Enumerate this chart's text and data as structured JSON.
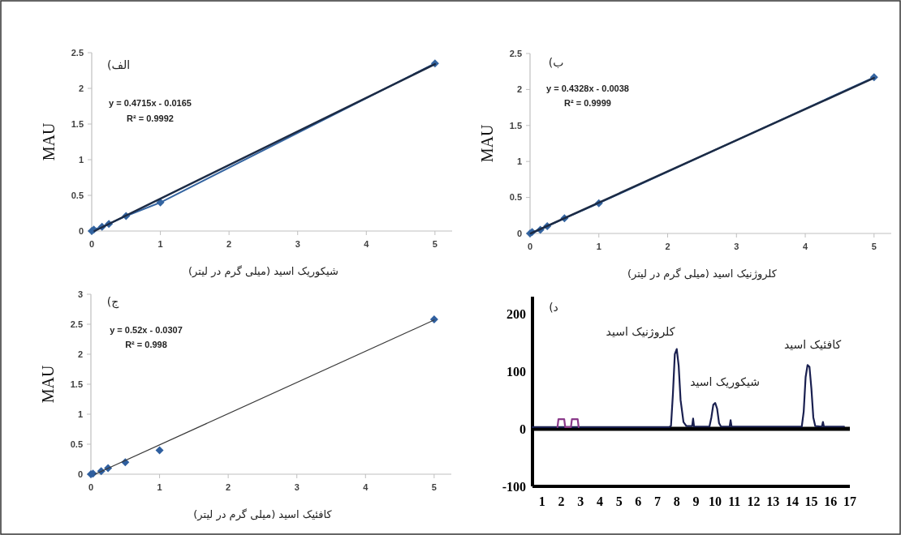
{
  "chart_data": [
    {
      "type": "scatter",
      "xlabel": "شیکوریک اسید (میلی گرم در لیتر)",
      "ylabel": "MAU",
      "annotations": [
        "الف)",
        "y = 0.4715x - 0.0165",
        "R² = 0.9992"
      ],
      "xlim": [
        0,
        5.25
      ],
      "xticks": [
        0,
        1,
        2,
        3,
        4,
        5
      ],
      "ylim": [
        0,
        2.5
      ],
      "yticks": [
        0,
        0.5,
        1,
        1.5,
        2,
        2.5
      ],
      "marker": "diamond",
      "series": [
        {
          "type": "line",
          "color": "#3464a0",
          "x": [
            0,
            0.03,
            0.15,
            0.25,
            0.5,
            1,
            5
          ],
          "values": [
            0,
            0.02,
            0.06,
            0.1,
            0.21,
            0.4,
            2.35
          ]
        },
        {
          "type": "line",
          "marker": "none",
          "color": "#1c2b45",
          "x": [
            0.04,
            5
          ],
          "values": [
            0,
            2.34
          ]
        }
      ]
    },
    {
      "type": "scatter",
      "xlabel": "کلروژنیک اسید (میلی گرم در لیتر)",
      "ylabel": "MAU",
      "annotations": [
        "ب)",
        "y = 0.4328x - 0.0038",
        "R² = 0.9999"
      ],
      "xlim": [
        0,
        5.25
      ],
      "xticks": [
        0,
        1,
        2,
        3,
        4,
        5
      ],
      "ylim": [
        0,
        2.5
      ],
      "yticks": [
        0,
        0.5,
        1,
        1.5,
        2,
        2.5
      ],
      "marker": "diamond",
      "series": [
        {
          "type": "line",
          "color": "#3464a0",
          "x": [
            0,
            0.03,
            0.15,
            0.25,
            0.5,
            1,
            5
          ],
          "values": [
            0,
            0.02,
            0.05,
            0.1,
            0.21,
            0.42,
            2.17
          ]
        },
        {
          "type": "line",
          "marker": "none",
          "color": "#1c2b45",
          "x": [
            0.01,
            5
          ],
          "values": [
            0,
            2.16
          ]
        }
      ]
    },
    {
      "type": "scatter",
      "xlabel": "کافئیک اسید (میلی گرم در لیتر)",
      "ylabel": "MAU",
      "annotations": [
        "ج)",
        "y = 0.52x - 0.0307",
        "R² = 0.998"
      ],
      "xlim": [
        0,
        5.25
      ],
      "xticks": [
        0,
        1,
        2,
        3,
        4,
        5
      ],
      "ylim": [
        0,
        3
      ],
      "yticks": [
        0,
        0.5,
        1,
        1.5,
        2,
        2.5,
        3
      ],
      "marker": "diamond",
      "series": [
        {
          "type": "scatter",
          "color": "#2f5f9f",
          "x": [
            0,
            0.03,
            0.15,
            0.25,
            0.5,
            1,
            5
          ],
          "values": [
            0,
            0.01,
            0.05,
            0.1,
            0.2,
            0.4,
            2.58
          ]
        },
        {
          "type": "line",
          "marker": "none",
          "color": "#3a3a3a",
          "x": [
            0.06,
            5
          ],
          "values": [
            0,
            2.57
          ]
        }
      ]
    },
    {
      "type": "line",
      "annotations": [
        "د)",
        "کلروژنیک اسید",
        "شیکوریک اسید",
        "کافئیک اسید"
      ],
      "xlim": [
        0.5,
        17
      ],
      "xticks": [
        1,
        2,
        3,
        4,
        5,
        6,
        7,
        8,
        9,
        10,
        11,
        12,
        13,
        14,
        15,
        16,
        17
      ],
      "ylim": [
        -100,
        230
      ],
      "yticks": [
        -100,
        0,
        100,
        200
      ],
      "marker": "none",
      "ref_lines": [
        {
          "axis": "y",
          "value": 0,
          "color": "#000000"
        }
      ],
      "series": [
        {
          "color": "#1a2050",
          "x": [
            0.5,
            7.6,
            7.7,
            7.8,
            7.9,
            8.0,
            8.1,
            8.2,
            8.35,
            8.5,
            8.8,
            8.85,
            8.9,
            9.7,
            9.8,
            9.9,
            10.0,
            10.1,
            10.2,
            10.3,
            10.75,
            10.8,
            10.85,
            14.5,
            14.6,
            14.7,
            14.8,
            14.9,
            15.0,
            15.1,
            15.2,
            15.55,
            15.6,
            15.65,
            16.7
          ],
          "values": [
            3,
            3,
            5,
            60,
            130,
            139,
            110,
            50,
            12,
            5,
            5,
            18,
            4,
            4,
            20,
            42,
            45,
            35,
            10,
            4,
            4,
            15,
            4,
            4,
            30,
            90,
            111,
            108,
            70,
            20,
            5,
            4,
            12,
            4,
            4
          ]
        },
        {
          "color": "#8a3a8a",
          "x": [
            1.8,
            1.85,
            2.15,
            2.2,
            2.5,
            2.55,
            2.85,
            2.9
          ],
          "values": [
            3,
            17,
            17,
            3,
            3,
            17,
            17,
            3
          ]
        }
      ]
    }
  ]
}
